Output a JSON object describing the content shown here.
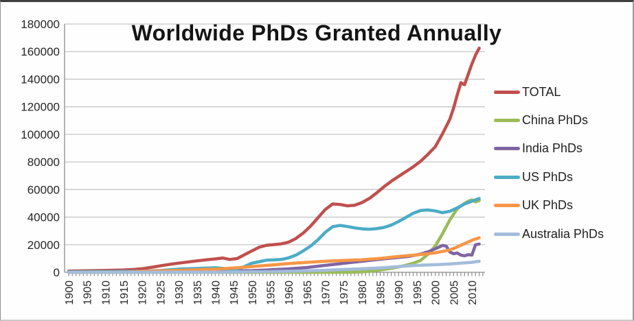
{
  "chart_data": {
    "type": "line",
    "title": "Worldwide PhDs Granted Annually",
    "xlabel": "",
    "ylabel": "",
    "x_range": [
      1900,
      2013
    ],
    "ylim": [
      0,
      180000
    ],
    "y_ticks": [
      0,
      20000,
      40000,
      60000,
      80000,
      100000,
      120000,
      140000,
      160000,
      180000
    ],
    "x_ticks": [
      1900,
      1905,
      1910,
      1915,
      1920,
      1925,
      1930,
      1935,
      1940,
      1945,
      1950,
      1955,
      1960,
      1965,
      1970,
      1975,
      1980,
      1985,
      1990,
      1995,
      2000,
      2005,
      2010
    ],
    "grid": "horizontal",
    "legend_position": "right",
    "style": {
      "grid_color": "#c6c6c6",
      "axis_color": "#8c8c8c",
      "tick_color": "#8c8c8c",
      "label_color": "#262626",
      "title_color": "#141414",
      "background": "#fefefe"
    },
    "series": [
      {
        "name": "TOTAL",
        "color": "#C0504D",
        "points": [
          [
            1900,
            900
          ],
          [
            1905,
            1100
          ],
          [
            1910,
            1400
          ],
          [
            1915,
            1700
          ],
          [
            1918,
            2100
          ],
          [
            1920,
            2600
          ],
          [
            1923,
            3800
          ],
          [
            1926,
            5100
          ],
          [
            1929,
            6300
          ],
          [
            1932,
            7300
          ],
          [
            1935,
            8300
          ],
          [
            1938,
            9200
          ],
          [
            1940,
            9700
          ],
          [
            1942,
            10400
          ],
          [
            1944,
            9300
          ],
          [
            1946,
            10000
          ],
          [
            1948,
            12800
          ],
          [
            1950,
            15500
          ],
          [
            1952,
            18200
          ],
          [
            1954,
            19600
          ],
          [
            1956,
            20100
          ],
          [
            1958,
            20600
          ],
          [
            1960,
            21900
          ],
          [
            1962,
            24500
          ],
          [
            1964,
            28500
          ],
          [
            1966,
            33500
          ],
          [
            1968,
            39500
          ],
          [
            1970,
            45500
          ],
          [
            1972,
            49500
          ],
          [
            1974,
            49200
          ],
          [
            1976,
            48200
          ],
          [
            1978,
            48600
          ],
          [
            1980,
            50500
          ],
          [
            1982,
            53500
          ],
          [
            1984,
            57500
          ],
          [
            1986,
            62000
          ],
          [
            1988,
            66000
          ],
          [
            1990,
            69500
          ],
          [
            1992,
            73000
          ],
          [
            1994,
            76500
          ],
          [
            1996,
            80500
          ],
          [
            1998,
            85500
          ],
          [
            2000,
            91000
          ],
          [
            2002,
            100500
          ],
          [
            2004,
            111000
          ],
          [
            2005,
            119000
          ],
          [
            2006,
            128500
          ],
          [
            2007,
            137500
          ],
          [
            2008,
            136000
          ],
          [
            2009,
            143500
          ],
          [
            2010,
            151000
          ],
          [
            2011,
            157500
          ],
          [
            2012,
            162500
          ]
        ]
      },
      {
        "name": "China PhDs",
        "color": "#9BBB59",
        "points": [
          [
            1900,
            0
          ],
          [
            1910,
            0
          ],
          [
            1920,
            0
          ],
          [
            1930,
            0
          ],
          [
            1940,
            0
          ],
          [
            1950,
            0
          ],
          [
            1960,
            0
          ],
          [
            1970,
            0
          ],
          [
            1978,
            100
          ],
          [
            1980,
            300
          ],
          [
            1982,
            700
          ],
          [
            1984,
            1300
          ],
          [
            1986,
            2100
          ],
          [
            1988,
            2900
          ],
          [
            1990,
            3900
          ],
          [
            1992,
            5100
          ],
          [
            1994,
            6600
          ],
          [
            1996,
            8600
          ],
          [
            1998,
            13000
          ],
          [
            2000,
            19000
          ],
          [
            2002,
            28000
          ],
          [
            2004,
            38000
          ],
          [
            2006,
            46000
          ],
          [
            2008,
            50000
          ],
          [
            2009,
            51500
          ],
          [
            2010,
            52500
          ],
          [
            2011,
            51000
          ],
          [
            2012,
            52000
          ]
        ]
      },
      {
        "name": "India PhDs",
        "color": "#8064A2",
        "points": [
          [
            1900,
            100
          ],
          [
            1910,
            200
          ],
          [
            1920,
            300
          ],
          [
            1930,
            500
          ],
          [
            1940,
            800
          ],
          [
            1950,
            1200
          ],
          [
            1955,
            1800
          ],
          [
            1960,
            2500
          ],
          [
            1965,
            3500
          ],
          [
            1970,
            5000
          ],
          [
            1975,
            6500
          ],
          [
            1980,
            8000
          ],
          [
            1985,
            9500
          ],
          [
            1990,
            10800
          ],
          [
            1993,
            11600
          ],
          [
            1996,
            13200
          ],
          [
            1998,
            14800
          ],
          [
            2000,
            17000
          ],
          [
            2002,
            19500
          ],
          [
            2003,
            19000
          ],
          [
            2004,
            14800
          ],
          [
            2005,
            13500
          ],
          [
            2006,
            14000
          ],
          [
            2007,
            12500
          ],
          [
            2008,
            12000
          ],
          [
            2009,
            12800
          ],
          [
            2010,
            12500
          ],
          [
            2011,
            20000
          ],
          [
            2012,
            20500
          ]
        ]
      },
      {
        "name": "US PhDs",
        "color": "#4BACC6",
        "points": [
          [
            1900,
            400
          ],
          [
            1905,
            500
          ],
          [
            1910,
            560
          ],
          [
            1915,
            650
          ],
          [
            1920,
            750
          ],
          [
            1925,
            1300
          ],
          [
            1930,
            2300
          ],
          [
            1935,
            2800
          ],
          [
            1940,
            3300
          ],
          [
            1942,
            2900
          ],
          [
            1944,
            1900
          ],
          [
            1946,
            2300
          ],
          [
            1948,
            4200
          ],
          [
            1950,
            6600
          ],
          [
            1952,
            7700
          ],
          [
            1954,
            8800
          ],
          [
            1956,
            9000
          ],
          [
            1958,
            9300
          ],
          [
            1960,
            10500
          ],
          [
            1962,
            12500
          ],
          [
            1964,
            15500
          ],
          [
            1966,
            19000
          ],
          [
            1968,
            23500
          ],
          [
            1970,
            29000
          ],
          [
            1972,
            33000
          ],
          [
            1974,
            34000
          ],
          [
            1976,
            33200
          ],
          [
            1978,
            32200
          ],
          [
            1980,
            31500
          ],
          [
            1982,
            31200
          ],
          [
            1984,
            31600
          ],
          [
            1986,
            32500
          ],
          [
            1988,
            34200
          ],
          [
            1990,
            36800
          ],
          [
            1992,
            39800
          ],
          [
            1994,
            42800
          ],
          [
            1996,
            44800
          ],
          [
            1998,
            45200
          ],
          [
            2000,
            44500
          ],
          [
            2002,
            43200
          ],
          [
            2004,
            44200
          ],
          [
            2006,
            46700
          ],
          [
            2008,
            49500
          ],
          [
            2010,
            51500
          ],
          [
            2012,
            53500
          ]
        ]
      },
      {
        "name": "UK PhDs",
        "color": "#F79646",
        "points": [
          [
            1900,
            50
          ],
          [
            1910,
            100
          ],
          [
            1915,
            150
          ],
          [
            1918,
            400
          ],
          [
            1920,
            700
          ],
          [
            1925,
            1050
          ],
          [
            1930,
            1400
          ],
          [
            1935,
            1850
          ],
          [
            1940,
            2300
          ],
          [
            1945,
            3100
          ],
          [
            1950,
            4200
          ],
          [
            1955,
            5200
          ],
          [
            1960,
            6300
          ],
          [
            1965,
            7200
          ],
          [
            1970,
            8000
          ],
          [
            1975,
            8600
          ],
          [
            1980,
            9100
          ],
          [
            1985,
            10100
          ],
          [
            1990,
            11500
          ],
          [
            1995,
            12600
          ],
          [
            2000,
            14100
          ],
          [
            2003,
            15600
          ],
          [
            2005,
            17200
          ],
          [
            2007,
            19600
          ],
          [
            2009,
            22000
          ],
          [
            2010,
            23200
          ],
          [
            2012,
            25000
          ]
        ]
      },
      {
        "name": "Australia PhDs",
        "color": "#A3BCDB",
        "points": [
          [
            1900,
            0
          ],
          [
            1920,
            50
          ],
          [
            1940,
            150
          ],
          [
            1950,
            350
          ],
          [
            1955,
            500
          ],
          [
            1960,
            750
          ],
          [
            1965,
            1050
          ],
          [
            1970,
            1500
          ],
          [
            1975,
            2050
          ],
          [
            1980,
            2550
          ],
          [
            1985,
            3200
          ],
          [
            1990,
            4200
          ],
          [
            1995,
            5000
          ],
          [
            2000,
            5500
          ],
          [
            2004,
            6000
          ],
          [
            2008,
            6800
          ],
          [
            2010,
            7200
          ],
          [
            2012,
            8000
          ]
        ]
      }
    ]
  }
}
